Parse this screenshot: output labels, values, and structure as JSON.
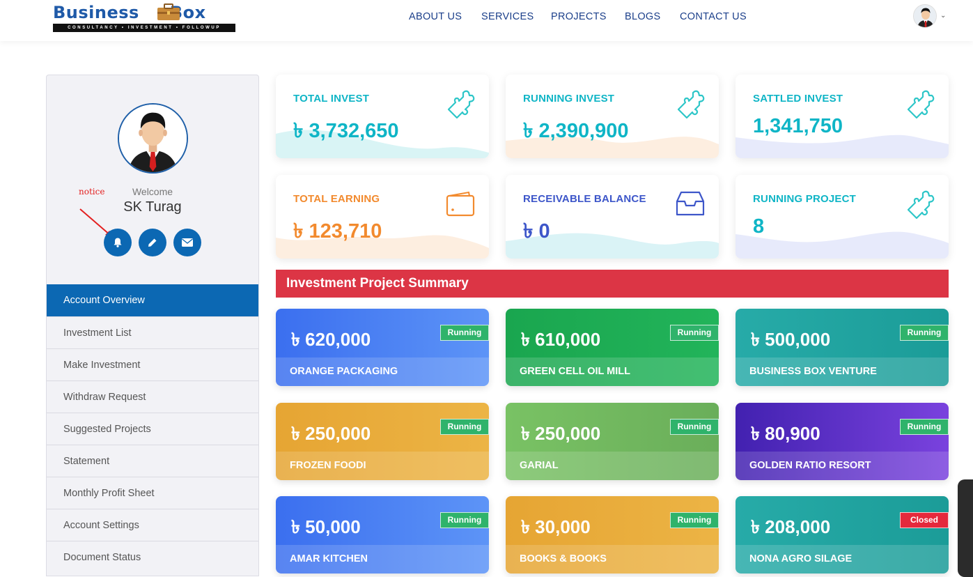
{
  "brand": {
    "name_left": "Business",
    "name_right": "Box",
    "tagline": "CONSULTANCY • INVESTMENT • FOLLOWUP"
  },
  "nav": {
    "items": [
      {
        "label": "ABOUT US"
      },
      {
        "label": "SERVICES"
      },
      {
        "label": "PROJECTS"
      },
      {
        "label": "BLOGS"
      },
      {
        "label": "CONTACT US"
      }
    ]
  },
  "profile": {
    "annotation": "notice",
    "welcome": "Welcome",
    "name": "SK Turag"
  },
  "sidebar": {
    "items": [
      {
        "label": "Account Overview",
        "active": true
      },
      {
        "label": "Investment List"
      },
      {
        "label": "Make Investment"
      },
      {
        "label": "Withdraw Request"
      },
      {
        "label": "Suggested Projects"
      },
      {
        "label": "Statement"
      },
      {
        "label": "Monthly Profit Sheet"
      },
      {
        "label": "Account Settings"
      },
      {
        "label": "Document Status"
      }
    ]
  },
  "stats": [
    {
      "label": "TOTAL INVEST",
      "value": "৳ 3,732,650",
      "color": "#0fb5c6",
      "icon": "puzzle-icon"
    },
    {
      "label": "RUNNING INVEST",
      "value": "৳ 2,390,900",
      "color": "#0fb5c6",
      "icon": "puzzle-icon"
    },
    {
      "label": "SATTLED INVEST",
      "value": "1,341,750",
      "color": "#0fb5c6",
      "icon": "puzzle-icon"
    },
    {
      "label": "TOTAL EARNING",
      "value": "৳ 123,710",
      "color": "#f28a2e",
      "icon": "wallet-icon"
    },
    {
      "label": "RECEIVABLE BALANCE",
      "value": "৳ 0",
      "color": "#3d56c9",
      "icon": "inbox-icon"
    },
    {
      "label": "RUNNING PROJECT",
      "value": "8",
      "color": "#0fb5c6",
      "icon": "puzzle-icon"
    }
  ],
  "summary": {
    "title": "Investment Project Summary"
  },
  "projects": [
    {
      "amount": "৳ 620,000",
      "name": "ORANGE PACKAGING",
      "status": "Running"
    },
    {
      "amount": "৳ 610,000",
      "name": "GREEN CELL OIL MILL",
      "status": "Running"
    },
    {
      "amount": "৳ 500,000",
      "name": "BUSINESS BOX VENTURE",
      "status": "Running"
    },
    {
      "amount": "৳ 250,000",
      "name": "FROZEN FOODI",
      "status": "Running"
    },
    {
      "amount": "৳ 250,000",
      "name": "GARIAL",
      "status": "Running"
    },
    {
      "amount": "৳ 80,900",
      "name": "GOLDEN RATIO RESORT",
      "status": "Running"
    },
    {
      "amount": "৳ 50,000",
      "name": "AMAR KITCHEN",
      "status": "Running"
    },
    {
      "amount": "৳ 30,000",
      "name": "BOOKS & BOOKS",
      "status": "Running"
    },
    {
      "amount": "৳ 208,000",
      "name": "NONA AGRO SILAGE",
      "status": "Closed"
    }
  ],
  "colors": {
    "primary": "#0c68b3",
    "banner": "#dc3545",
    "running_badge": "#2fb36b",
    "closed_badge": "#e5293c"
  }
}
